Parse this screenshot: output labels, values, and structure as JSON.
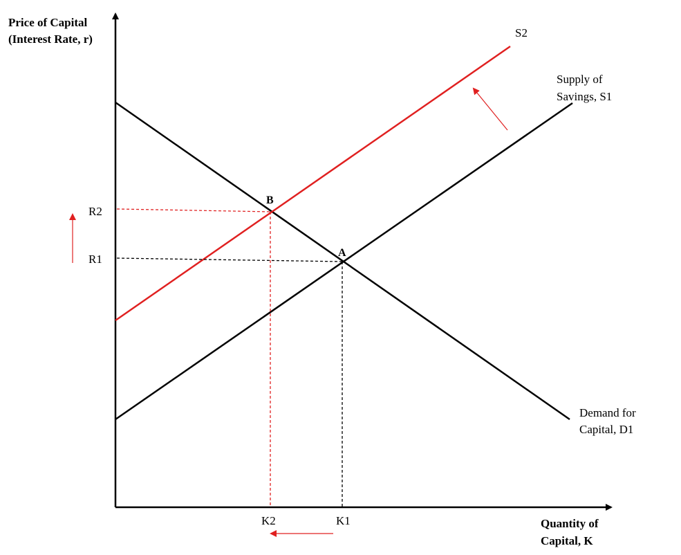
{
  "axes": {
    "y_title_line1": "Price of Capital",
    "y_title_line2": "(Interest Rate, r)",
    "x_title_line1": "Quantity of",
    "x_title_line2": "Capital, K"
  },
  "curves": {
    "s2_label": "S2",
    "s1_label_line1": "Supply of",
    "s1_label_line2": "Savings, S1",
    "d1_label_line1": "Demand for",
    "d1_label_line2": "Capital, D1"
  },
  "points": {
    "a_label": "A",
    "b_label": "B"
  },
  "ticks": {
    "r1": "R1",
    "r2": "R2",
    "k1": "K1",
    "k2": "K2"
  },
  "colors": {
    "black": "#000000",
    "red": "#e02020"
  }
}
